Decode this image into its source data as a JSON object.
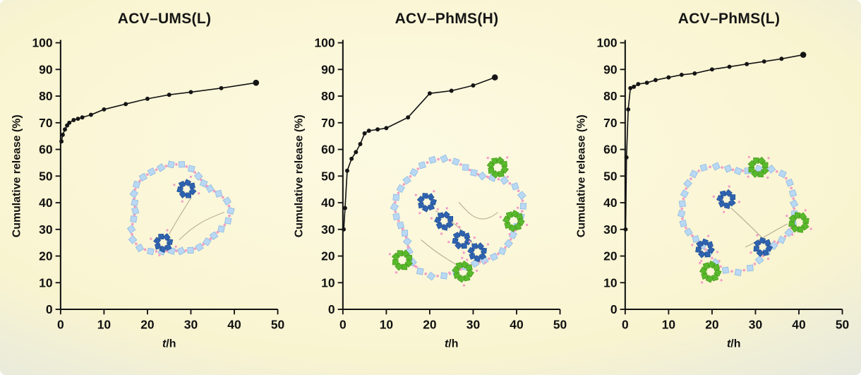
{
  "figure": {
    "background_center_color": "#f9f4d0",
    "background_edge_color": "#ccd8f0",
    "curve_color": "#151515"
  },
  "chart_data": [
    {
      "type": "line",
      "title": "ACV–UMS(L)",
      "xlabel": "t/h",
      "ylabel": "Cumulative release (%)",
      "xlim": [
        0,
        50
      ],
      "ylim": [
        0,
        100
      ],
      "xticks": [
        0,
        10,
        20,
        30,
        40,
        50
      ],
      "yticks": [
        0,
        10,
        20,
        30,
        40,
        50,
        60,
        70,
        80,
        90,
        100
      ],
      "x": [
        0.2,
        0.5,
        1,
        1.5,
        2,
        3,
        4,
        5,
        7,
        10,
        15,
        20,
        25,
        30,
        37,
        45
      ],
      "y": [
        63,
        65.5,
        67.5,
        69,
        70,
        71,
        71.5,
        72,
        73,
        75,
        77,
        79,
        80.5,
        81.5,
        83,
        85
      ],
      "inset": {
        "description": "mesoporous silica nanoparticle ring with ACV drug clusters",
        "blue_cluster_count": 2,
        "green_cluster_count": 0
      }
    },
    {
      "type": "line",
      "title": "ACV–PhMS(H)",
      "xlabel": "t/h",
      "ylabel": "Cumulative release (%)",
      "xlim": [
        0,
        50
      ],
      "ylim": [
        0,
        100
      ],
      "xticks": [
        0,
        10,
        20,
        30,
        40,
        50
      ],
      "yticks": [
        0,
        10,
        20,
        30,
        40,
        50,
        60,
        70,
        80,
        90,
        100
      ],
      "x": [
        0.2,
        0.5,
        1,
        2,
        3,
        4,
        5,
        6,
        8,
        10,
        15,
        20,
        25,
        30,
        35
      ],
      "y": [
        30,
        38,
        52,
        56.5,
        59,
        62,
        66,
        67,
        67.5,
        68,
        72,
        81,
        82,
        84,
        87
      ],
      "inset": {
        "description": "phenyl-modified silica nanoparticle ring with ACV drug and phenyl clusters",
        "blue_cluster_count": 4,
        "green_cluster_count": 4
      }
    },
    {
      "type": "line",
      "title": "ACV–PhMS(L)",
      "xlabel": "t/h",
      "ylabel": "Cumulative release (%)",
      "xlim": [
        0,
        50
      ],
      "ylim": [
        0,
        100
      ],
      "xticks": [
        0,
        10,
        20,
        30,
        40,
        50
      ],
      "yticks": [
        0,
        10,
        20,
        30,
        40,
        50,
        60,
        70,
        80,
        90,
        100
      ],
      "x": [
        0.1,
        0.3,
        0.7,
        1.2,
        2,
        3,
        5,
        7,
        10,
        13,
        16,
        20,
        24,
        28,
        32,
        36,
        41
      ],
      "y": [
        30,
        57,
        75,
        83,
        83.5,
        84.5,
        85,
        86,
        87,
        88,
        88.5,
        90,
        91,
        92,
        93,
        94,
        95.5
      ],
      "inset": {
        "description": "phenyl-modified silica nanoparticle ring with ACV drug and phenyl clusters",
        "blue_cluster_count": 3,
        "green_cluster_count": 3
      }
    }
  ],
  "inset_colors": {
    "shell_diamond": "#b9d8f3",
    "shell_diamond_stroke": "#86b5e2",
    "linker_pink": "#f29ec6",
    "drug_blue": "#2f63b0",
    "drug_blue_stroke": "#1c4a8f",
    "phenyl_green": "#59b92c",
    "phenyl_green_stroke": "#3e9214"
  }
}
